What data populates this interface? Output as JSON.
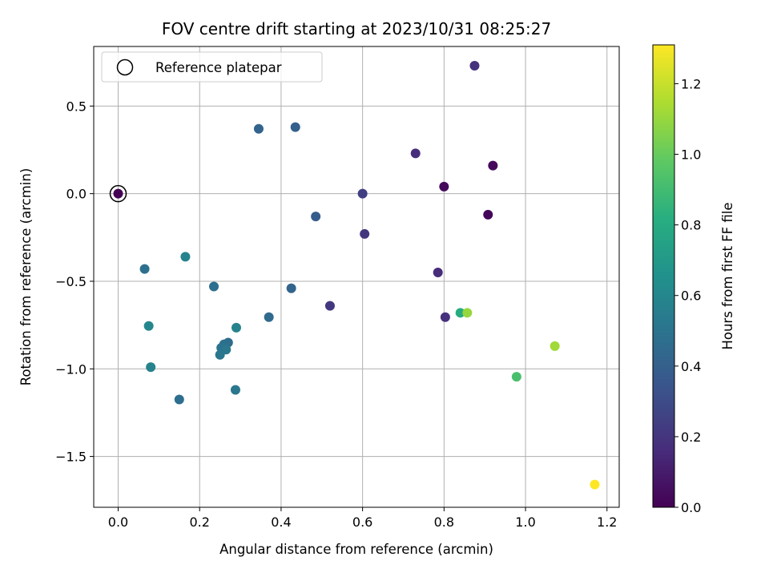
{
  "chart_data": {
    "type": "scatter",
    "title": "FOV centre drift starting at 2023/10/31 08:25:27",
    "xlabel": "Angular distance from reference (arcmin)",
    "ylabel": "Rotation from reference (arcmin)",
    "xlim": [
      -0.06,
      1.23
    ],
    "ylim": [
      -1.79,
      0.84
    ],
    "xticks": [
      0.0,
      0.2,
      0.4,
      0.6,
      0.8,
      1.0,
      1.2
    ],
    "xtick_labels": [
      "0.0",
      "0.2",
      "0.4",
      "0.6",
      "0.8",
      "1.0",
      "1.2"
    ],
    "yticks": [
      0.5,
      0.0,
      -0.5,
      -1.0,
      -1.5
    ],
    "ytick_labels": [
      "0.5",
      "0.0",
      "−0.5",
      "−1.0",
      "−1.5"
    ],
    "grid": true,
    "legend": {
      "placement": "top-left",
      "entries": [
        "Reference platepar"
      ]
    },
    "reference_point": {
      "x": 0.0,
      "y": 0.0
    },
    "colorbar": {
      "label": "Hours from first FF file",
      "colormap": "viridis",
      "range": [
        0.0,
        1.31
      ],
      "ticks": [
        0.0,
        0.2,
        0.4,
        0.6,
        0.8,
        1.0,
        1.2
      ],
      "tick_labels": [
        "0.0",
        "0.2",
        "0.4",
        "0.6",
        "0.8",
        "1.0",
        "1.2"
      ]
    },
    "points": [
      {
        "x": 0.0,
        "y": 0.0,
        "c": 0.0
      },
      {
        "x": 0.875,
        "y": 0.73,
        "c": 0.18
      },
      {
        "x": 0.345,
        "y": 0.37,
        "c": 0.42
      },
      {
        "x": 0.435,
        "y": 0.38,
        "c": 0.4
      },
      {
        "x": 0.73,
        "y": 0.23,
        "c": 0.17
      },
      {
        "x": 0.92,
        "y": 0.16,
        "c": 0.03
      },
      {
        "x": 0.8,
        "y": 0.04,
        "c": 0.03
      },
      {
        "x": 0.6,
        "y": 0.0,
        "c": 0.24
      },
      {
        "x": 0.908,
        "y": -0.12,
        "c": 0.02
      },
      {
        "x": 0.485,
        "y": -0.13,
        "c": 0.38
      },
      {
        "x": 0.605,
        "y": -0.23,
        "c": 0.2
      },
      {
        "x": 0.165,
        "y": -0.36,
        "c": 0.58
      },
      {
        "x": 0.065,
        "y": -0.43,
        "c": 0.48
      },
      {
        "x": 0.785,
        "y": -0.45,
        "c": 0.16
      },
      {
        "x": 0.235,
        "y": -0.53,
        "c": 0.47
      },
      {
        "x": 0.425,
        "y": -0.54,
        "c": 0.42
      },
      {
        "x": 0.52,
        "y": -0.64,
        "c": 0.21
      },
      {
        "x": 0.84,
        "y": -0.68,
        "c": 0.8
      },
      {
        "x": 0.857,
        "y": -0.68,
        "c": 1.1
      },
      {
        "x": 0.37,
        "y": -0.705,
        "c": 0.45
      },
      {
        "x": 0.803,
        "y": -0.705,
        "c": 0.18
      },
      {
        "x": 0.075,
        "y": -0.755,
        "c": 0.6
      },
      {
        "x": 0.29,
        "y": -0.765,
        "c": 0.58
      },
      {
        "x": 0.27,
        "y": -0.85,
        "c": 0.46
      },
      {
        "x": 0.26,
        "y": -0.86,
        "c": 0.48
      },
      {
        "x": 0.253,
        "y": -0.88,
        "c": 0.5
      },
      {
        "x": 0.265,
        "y": -0.89,
        "c": 0.52
      },
      {
        "x": 0.25,
        "y": -0.92,
        "c": 0.52
      },
      {
        "x": 1.072,
        "y": -0.87,
        "c": 1.12
      },
      {
        "x": 0.08,
        "y": -0.99,
        "c": 0.58
      },
      {
        "x": 0.978,
        "y": -1.045,
        "c": 0.92
      },
      {
        "x": 0.288,
        "y": -1.12,
        "c": 0.52
      },
      {
        "x": 0.15,
        "y": -1.175,
        "c": 0.47
      },
      {
        "x": 1.17,
        "y": -1.66,
        "c": 1.31
      }
    ]
  }
}
